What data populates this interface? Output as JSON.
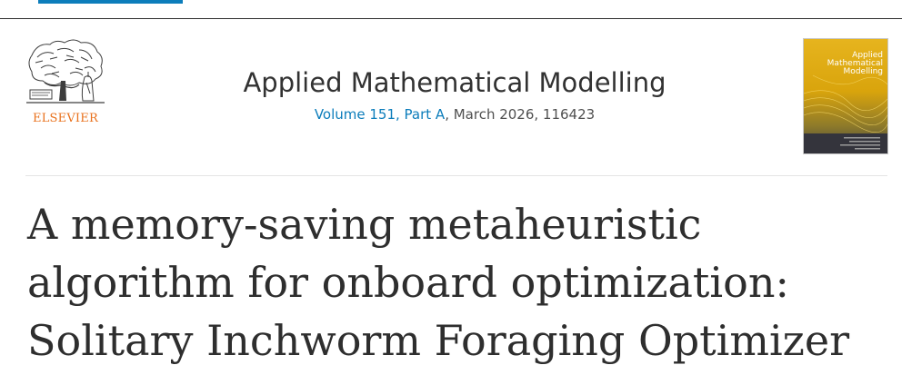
{
  "publisher": {
    "name": "ELSEVIER",
    "brand_color": "#e9711c"
  },
  "journal": {
    "title": "Applied Mathematical Modelling",
    "volume_link": "Volume 151, Part A",
    "issue_rest": ", March 2026, 116423",
    "link_color": "#0c7dbb"
  },
  "cover": {
    "title_lines": [
      "Applied",
      "Mathematical",
      "Modelling"
    ],
    "background_color": "#e1ae14"
  },
  "article": {
    "title": "A memory-saving metaheuristic algorithm for onboard optimization: Solitary Inchworm Foraging Optimizer"
  }
}
